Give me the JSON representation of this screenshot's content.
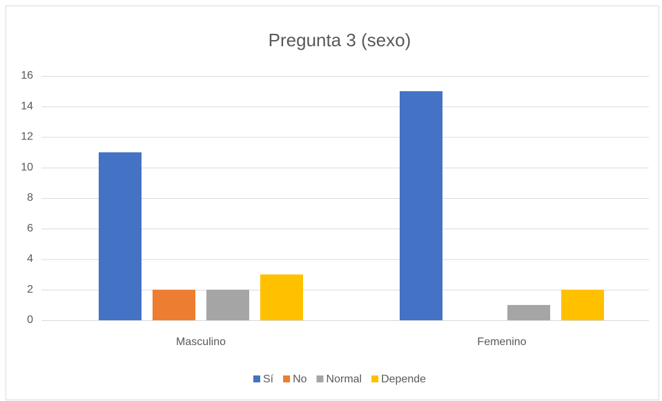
{
  "chart_data": {
    "type": "bar",
    "title": "Pregunta 3 (sexo)",
    "categories": [
      "Masculino",
      "Femenino"
    ],
    "series": [
      {
        "name": "Sí",
        "color": "#4472c4",
        "values": [
          11,
          15
        ]
      },
      {
        "name": "No",
        "color": "#ed7d31",
        "values": [
          2,
          0
        ]
      },
      {
        "name": "Normal",
        "color": "#a5a5a5",
        "values": [
          2,
          1
        ]
      },
      {
        "name": "Depende",
        "color": "#ffc000",
        "values": [
          3,
          2
        ]
      }
    ],
    "ylim": [
      0,
      16
    ],
    "yticks": [
      0,
      2,
      4,
      6,
      8,
      10,
      12,
      14,
      16
    ],
    "grid": true,
    "legend": "bottom"
  }
}
